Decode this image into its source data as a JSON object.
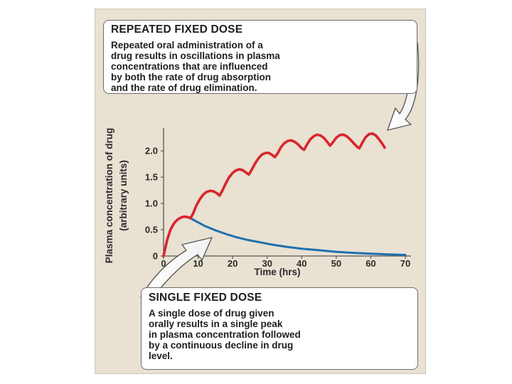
{
  "top_callout": {
    "title": "REPEATED FIXED DOSE",
    "body": "Repeated oral administration of a\ndrug results in oscillations in plasma\nconcentrations that are influenced\nby both the rate of drug absorption\nand the rate of drug elimination."
  },
  "bottom_callout": {
    "title": "SINGLE FIXED DOSE",
    "body": "A single dose of drug given\norally results in a single peak\nin plasma concentration followed\nby a continuous decline in drug\nlevel."
  },
  "colors": {
    "panel_background": "#e9e1d2",
    "repeated_dose_line": "#d9252c",
    "single_dose_line": "#1f6fae",
    "axis": "#555555"
  },
  "chart_data": {
    "type": "line",
    "title": "",
    "xlabel": "Time (hrs)",
    "ylabel_line1": "Plasma concentration of drug",
    "ylabel_line2": "(arbitrary units)",
    "xlim": [
      0,
      70
    ],
    "ylim": [
      0,
      2.3
    ],
    "x_ticks": [
      0,
      10,
      20,
      30,
      40,
      50,
      60,
      70
    ],
    "x_tick_labels": [
      "0",
      "10",
      "20",
      "30",
      "40",
      "50",
      "60",
      "70"
    ],
    "y_ticks": [
      0,
      0.5,
      1.0,
      1.5,
      2.0
    ],
    "y_tick_labels": [
      "0",
      "0.5",
      "1.0",
      "1.5",
      "2.0"
    ],
    "grid": false,
    "legend": "none",
    "series": [
      {
        "x": [
          0,
          1,
          2,
          3,
          4,
          5,
          6,
          7,
          7.8,
          8.5,
          9.5,
          10.5,
          11.5,
          12.5,
          13.5,
          14.5,
          15.5,
          16.2,
          17,
          18,
          19,
          20,
          21,
          22,
          23,
          24,
          24.7,
          25.5,
          26.5,
          27.5,
          28.5,
          29.5,
          30.5,
          31.5,
          32.2,
          33,
          34,
          35,
          36,
          37,
          38,
          39,
          40,
          40.7,
          41.5,
          42.5,
          43.5,
          44.5,
          45.5,
          46.5,
          47.5,
          48.2,
          49,
          50,
          51,
          52,
          53,
          54,
          55,
          56,
          56.7,
          57.5,
          58.5,
          59.5,
          60.5,
          61.5,
          62.5,
          63.5,
          64
        ],
        "values": [
          0,
          0.3,
          0.5,
          0.62,
          0.69,
          0.73,
          0.75,
          0.74,
          0.72,
          0.8,
          0.96,
          1.08,
          1.17,
          1.22,
          1.24,
          1.23,
          1.19,
          1.15,
          1.24,
          1.38,
          1.5,
          1.58,
          1.63,
          1.65,
          1.63,
          1.58,
          1.55,
          1.64,
          1.76,
          1.86,
          1.93,
          1.96,
          1.96,
          1.92,
          1.88,
          1.95,
          2.07,
          2.15,
          2.19,
          2.2,
          2.17,
          2.12,
          2.05,
          2.02,
          2.12,
          2.22,
          2.28,
          2.31,
          2.29,
          2.24,
          2.16,
          2.1,
          2.16,
          2.25,
          2.3,
          2.31,
          2.28,
          2.22,
          2.15,
          2.08,
          2.05,
          2.15,
          2.26,
          2.32,
          2.33,
          2.29,
          2.21,
          2.12,
          2.06
        ]
      },
      {
        "x": [
          0,
          1,
          2,
          3,
          4,
          5,
          6,
          7,
          8,
          10,
          12,
          15,
          18,
          21,
          24,
          28,
          32,
          36,
          40,
          45,
          50,
          55,
          60,
          65,
          70
        ],
        "values": [
          0,
          0.3,
          0.5,
          0.62,
          0.69,
          0.73,
          0.75,
          0.74,
          0.71,
          0.64,
          0.57,
          0.49,
          0.42,
          0.36,
          0.31,
          0.26,
          0.21,
          0.17,
          0.14,
          0.11,
          0.08,
          0.06,
          0.045,
          0.03,
          0.02
        ]
      }
    ]
  }
}
